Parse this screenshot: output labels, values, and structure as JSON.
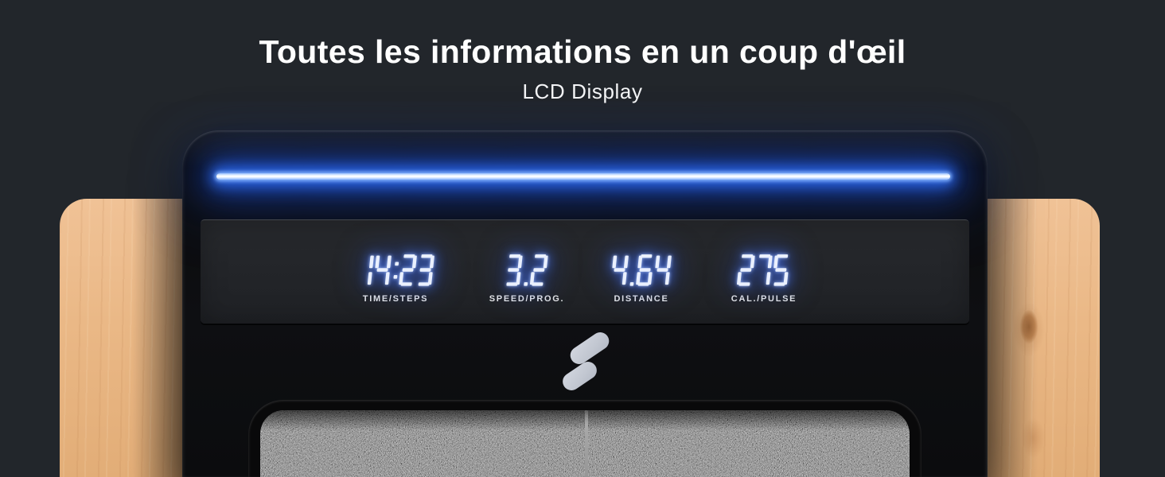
{
  "header": {
    "title": "Toutes les informations en un coup d'œil",
    "subtitle": "LCD Display"
  },
  "console": {
    "displays": [
      {
        "value": "14:23",
        "label": "TIME/STEPS"
      },
      {
        "value": "3.2",
        "label": "SPEED/PROG."
      },
      {
        "value": "4.64",
        "label": "DISTANCE"
      },
      {
        "value": "275",
        "label": "CAL./PULSE"
      }
    ],
    "logo_icon": "brand-s-logo"
  },
  "colors": {
    "background": "#22262b",
    "led_blue": "#2f6bf0",
    "digit_core": "#eaf0ff",
    "digit_glow": "#2e5fe8",
    "console_black": "#0c0d0f",
    "wood": "#eab886",
    "logo_grey": "#c6cbd4"
  }
}
